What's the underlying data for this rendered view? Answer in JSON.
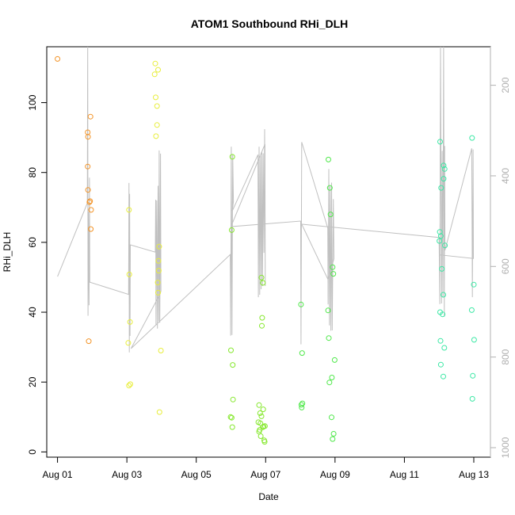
{
  "chart_data": {
    "type": "scatter",
    "title": "ATOM1 Southbound RHi_DLH",
    "xlabel": "Date",
    "ylabel": "RHi_DLH",
    "x_ticks": [
      "Aug 01",
      "Aug 03",
      "Aug 05",
      "Aug 07",
      "Aug 09",
      "Aug 11",
      "Aug 13"
    ],
    "x_tick_days": [
      1,
      3,
      5,
      7,
      9,
      11,
      13
    ],
    "xlim_days": [
      0.69,
      13.48
    ],
    "ylim": [
      -1.5,
      116
    ],
    "y_ticks": [
      0,
      20,
      40,
      60,
      80,
      100
    ],
    "secondary_axis": {
      "label": "",
      "reversed": true,
      "ticks": [
        200,
        400,
        600,
        800,
        1000
      ],
      "range": [
        115,
        1021
      ],
      "color": "#b0b0b0"
    },
    "series": [
      {
        "color": "#f39428",
        "points": [
          [
            1.0,
            112.5
          ],
          [
            1.87,
            91.5
          ],
          [
            1.88,
            90.2
          ],
          [
            1.87,
            81.7
          ],
          [
            1.88,
            75.0
          ],
          [
            1.92,
            71.5
          ],
          [
            1.94,
            71.8
          ],
          [
            1.95,
            96.0
          ],
          [
            1.97,
            69.3
          ],
          [
            1.96,
            63.8
          ],
          [
            1.9,
            31.7
          ]
        ]
      },
      {
        "color": "#e8ee3c",
        "points": [
          [
            3.06,
            69.3
          ],
          [
            3.07,
            50.8
          ],
          [
            3.09,
            37.2
          ],
          [
            3.04,
            31.2
          ],
          [
            3.06,
            19.0
          ],
          [
            3.1,
            19.4
          ],
          [
            3.82,
            111.2
          ],
          [
            3.8,
            108.1
          ],
          [
            3.9,
            109.4
          ],
          [
            3.83,
            101.5
          ],
          [
            3.87,
            99.0
          ],
          [
            3.87,
            93.6
          ],
          [
            3.84,
            90.4
          ],
          [
            3.93,
            58.8
          ],
          [
            3.91,
            54.7
          ],
          [
            3.92,
            51.9
          ],
          [
            3.89,
            48.5
          ],
          [
            3.9,
            45.6
          ],
          [
            3.98,
            29.0
          ],
          [
            3.94,
            11.4
          ]
        ]
      },
      {
        "color": "#86e82e",
        "points": [
          [
            6.04,
            84.5
          ],
          [
            6.02,
            63.5
          ],
          [
            6.0,
            29.1
          ],
          [
            6.05,
            24.9
          ],
          [
            6.06,
            15.0
          ],
          [
            5.99,
            10.0
          ],
          [
            6.02,
            9.8
          ],
          [
            6.04,
            7.1
          ],
          [
            6.81,
            13.4
          ],
          [
            6.84,
            11.1
          ],
          [
            6.88,
            10.2
          ],
          [
            6.93,
            12.2
          ],
          [
            6.79,
            8.5
          ],
          [
            6.85,
            8.2
          ],
          [
            6.83,
            6.3
          ],
          [
            6.81,
            5.8
          ],
          [
            6.86,
            4.5
          ],
          [
            6.94,
            7.3
          ],
          [
            6.92,
            7.1
          ],
          [
            6.98,
            7.4
          ],
          [
            6.96,
            3.3
          ],
          [
            6.97,
            2.9
          ],
          [
            6.88,
            49.9
          ],
          [
            6.92,
            48.4
          ],
          [
            6.9,
            38.4
          ],
          [
            6.89,
            36.1
          ]
        ]
      },
      {
        "color": "#4fe84a",
        "points": [
          [
            8.02,
            42.2
          ],
          [
            8.05,
            28.3
          ],
          [
            8.03,
            13.5
          ],
          [
            8.06,
            13.9
          ],
          [
            8.04,
            12.7
          ],
          [
            8.81,
            83.7
          ],
          [
            8.85,
            75.6
          ],
          [
            8.87,
            68.0
          ],
          [
            8.93,
            52.9
          ],
          [
            8.95,
            51.0
          ],
          [
            8.8,
            40.5
          ],
          [
            8.82,
            32.6
          ],
          [
            8.99,
            26.3
          ],
          [
            8.91,
            21.3
          ],
          [
            8.84,
            19.9
          ],
          [
            8.9,
            9.9
          ],
          [
            8.96,
            5.2
          ],
          [
            8.93,
            3.7
          ]
        ]
      },
      {
        "color": "#3ce8a5",
        "points": [
          [
            12.03,
            88.8
          ],
          [
            12.13,
            82.0
          ],
          [
            12.16,
            81.0
          ],
          [
            12.13,
            78.2
          ],
          [
            12.06,
            75.6
          ],
          [
            12.02,
            63.0
          ],
          [
            12.05,
            61.8
          ],
          [
            12.01,
            60.4
          ],
          [
            12.17,
            59.1
          ],
          [
            12.08,
            52.4
          ],
          [
            12.12,
            45.0
          ],
          [
            12.03,
            40.0
          ],
          [
            12.1,
            39.4
          ],
          [
            12.04,
            31.8
          ],
          [
            12.15,
            29.8
          ],
          [
            12.05,
            25.0
          ],
          [
            12.12,
            21.6
          ],
          [
            12.95,
            89.9
          ],
          [
            13.0,
            47.9
          ],
          [
            12.94,
            40.6
          ],
          [
            13.01,
            32.1
          ],
          [
            12.97,
            21.8
          ],
          [
            12.96,
            15.2
          ]
        ]
      }
    ],
    "flight_track": {
      "color": "#c0c0c0",
      "points": [
        [
          1.0,
          50.2
        ],
        [
          1.86,
          71.2
        ],
        [
          1.87,
          116.0
        ],
        [
          1.88,
          39.0
        ],
        [
          1.89,
          68.8
        ],
        [
          1.91,
          42.0
        ],
        [
          1.92,
          78.5
        ],
        [
          1.93,
          48.6
        ],
        [
          3.05,
          45.1
        ],
        [
          3.06,
          77.0
        ],
        [
          3.07,
          28.5
        ],
        [
          3.08,
          73.9
        ],
        [
          3.09,
          33.2
        ],
        [
          3.1,
          59.3
        ],
        [
          3.82,
          57.2
        ],
        [
          3.83,
          72.2
        ],
        [
          3.84,
          36.2
        ],
        [
          3.86,
          72.0
        ],
        [
          3.88,
          35.3
        ],
        [
          3.9,
          76.2
        ],
        [
          3.92,
          37.4
        ],
        [
          3.93,
          86.3
        ],
        [
          3.95,
          37.0
        ],
        [
          3.97,
          85.4
        ],
        [
          3.98,
          46.0
        ],
        [
          3.96,
          45.3
        ],
        [
          3.12,
          29.6
        ],
        [
          5.98,
          56.5
        ],
        [
          5.99,
          33.3
        ],
        [
          6.01,
          87.4
        ],
        [
          6.03,
          33.5
        ],
        [
          6.05,
          85.2
        ],
        [
          6.07,
          71.7
        ],
        [
          6.04,
          69.0
        ],
        [
          6.78,
          85.1
        ],
        [
          6.79,
          44.3
        ],
        [
          6.81,
          87.4
        ],
        [
          6.83,
          45.0
        ],
        [
          6.85,
          84.7
        ],
        [
          6.87,
          46.6
        ],
        [
          6.89,
          86.0
        ],
        [
          6.91,
          47.5
        ],
        [
          6.93,
          85.5
        ],
        [
          6.95,
          57.0
        ],
        [
          6.97,
          92.4
        ],
        [
          6.99,
          47.5
        ],
        [
          6.98,
          88.1
        ],
        [
          6.0,
          64.5
        ],
        [
          8.01,
          66.1
        ],
        [
          8.02,
          30.8
        ],
        [
          8.04,
          88.7
        ],
        [
          8.79,
          64.1
        ],
        [
          8.8,
          42.2
        ],
        [
          8.82,
          81.0
        ],
        [
          8.84,
          36.2
        ],
        [
          8.86,
          76.1
        ],
        [
          8.88,
          34.7
        ],
        [
          8.9,
          77.1
        ],
        [
          8.92,
          34.8
        ],
        [
          8.95,
          72.4
        ],
        [
          8.97,
          55.3
        ],
        [
          8.8,
          49.3
        ],
        [
          8.04,
          65.2
        ],
        [
          12.0,
          61.4
        ],
        [
          12.02,
          42.3
        ],
        [
          12.04,
          116.0
        ],
        [
          12.07,
          42.5
        ],
        [
          12.09,
          86.2
        ],
        [
          12.11,
          44.3
        ],
        [
          12.13,
          116.0
        ],
        [
          12.15,
          38.7
        ],
        [
          12.16,
          87.6
        ],
        [
          12.17,
          57.7
        ],
        [
          12.94,
          86.9
        ],
        [
          12.96,
          44.3
        ],
        [
          12.98,
          86.6
        ],
        [
          12.99,
          55.4
        ],
        [
          12.02,
          56.4
        ],
        [
          12.03,
          65.4
        ]
      ]
    }
  }
}
